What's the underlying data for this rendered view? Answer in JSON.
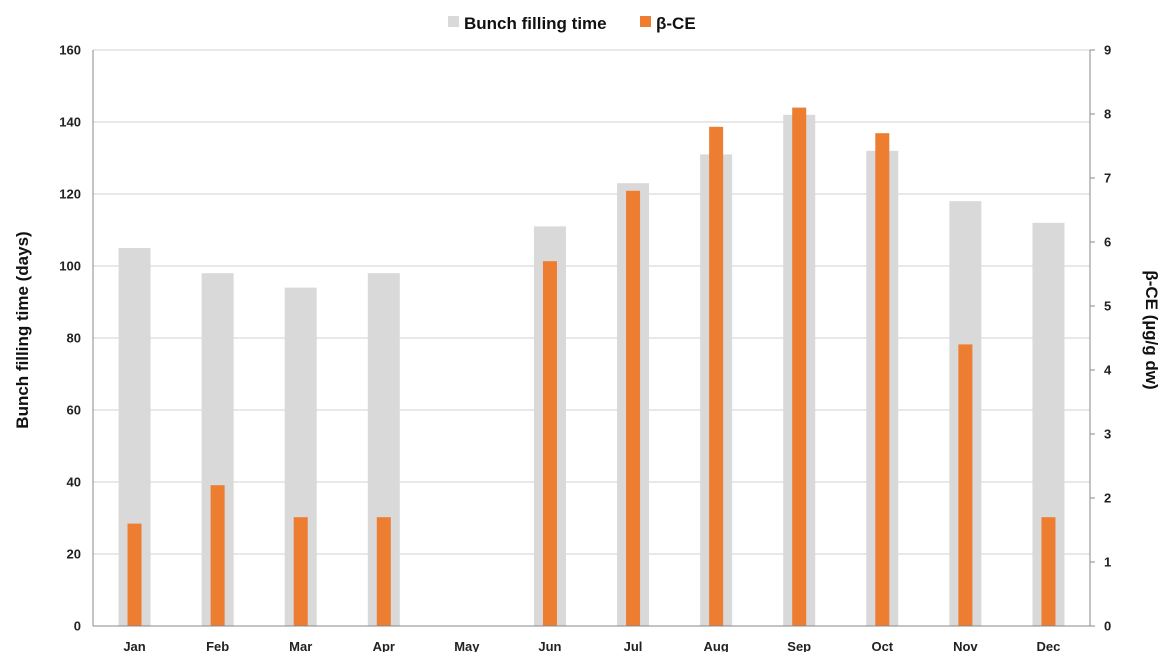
{
  "chart_data": {
    "type": "bar",
    "categories": [
      "Jan",
      "Feb",
      "Mar",
      "Apr",
      "May",
      "Jun",
      "Jul",
      "Aug",
      "Sep",
      "Oct",
      "Nov",
      "Dec"
    ],
    "series": [
      {
        "name": "Bunch filling time",
        "axis": "left",
        "color": "#d9d9d9",
        "values": [
          105,
          98,
          94,
          98,
          null,
          111,
          123,
          131,
          142,
          132,
          118,
          112
        ]
      },
      {
        "name": "β-CE",
        "axis": "right",
        "color": "#ed7d31",
        "values": [
          1.6,
          2.2,
          1.7,
          1.7,
          null,
          5.7,
          6.8,
          7.8,
          8.1,
          7.7,
          4.4,
          1.7
        ]
      }
    ],
    "ylabel": "Bunch filling time (days)",
    "ylim": [
      0,
      160
    ],
    "yticks": [
      0,
      20,
      40,
      60,
      80,
      100,
      120,
      140,
      160
    ],
    "y2label": "β-CE (µg/g dw)",
    "y2lim": [
      0,
      9
    ],
    "y2ticks": [
      0,
      1,
      2,
      3,
      4,
      5,
      6,
      7,
      8,
      9
    ],
    "grid": true,
    "legend": "top-center"
  }
}
